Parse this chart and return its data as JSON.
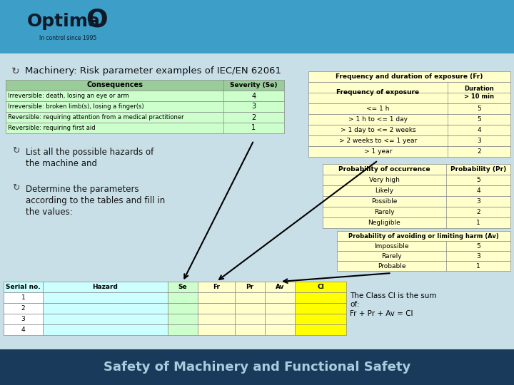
{
  "bg_header_color": "#3d9ec8",
  "bg_body_color": "#c8dfe8",
  "bg_footer_color": "#1a3a5c",
  "title_text": "Optima",
  "title_o": "O",
  "subtitle": "In control since 1995",
  "slide_title": "Machinery: Risk parameter examples of IEC/EN 62061",
  "footer_text": "Safety of Machinery and Functional Safety",
  "consequences_header": [
    "Consequences",
    "Severity (Se)"
  ],
  "consequences_rows": [
    [
      "Irreversible: death, losing an eye or arm",
      "4"
    ],
    [
      "Irreversible: broken limb(s), losing a finger(s)",
      "3"
    ],
    [
      "Reversible: requiring attention from a medical practitioner",
      "2"
    ],
    [
      "Reversible: requiring first aid",
      "1"
    ]
  ],
  "fr_title": "Frequency and duration of exposure (Fr)",
  "fr_header": [
    "Frequency of exposure",
    "Duration\n> 10 min"
  ],
  "fr_rows": [
    [
      "<= 1 h",
      "5"
    ],
    [
      "> 1 h to <= 1 day",
      "5"
    ],
    [
      "> 1 day to <= 2 weeks",
      "4"
    ],
    [
      "> 2 weeks to <= 1 year",
      "3"
    ],
    [
      "> 1 year",
      "2"
    ]
  ],
  "pr_header": [
    "Probability of occurrence",
    "Probability (Pr)"
  ],
  "pr_rows": [
    [
      "Very high",
      "5"
    ],
    [
      "Likely",
      "4"
    ],
    [
      "Possible",
      "3"
    ],
    [
      "Rarely",
      "2"
    ],
    [
      "Negligible",
      "1"
    ]
  ],
  "av_title": "Probability of avoiding or limiting harm (Av)",
  "av_rows": [
    [
      "Impossible",
      "5"
    ],
    [
      "Rarely",
      "3"
    ],
    [
      "Probable",
      "1"
    ]
  ],
  "bottom_header": [
    "Serial no.",
    "Hazard",
    "Se",
    "Fr",
    "Pr",
    "Av",
    "Cl"
  ],
  "bottom_rows": [
    [
      "1",
      "",
      "",
      "",
      "",
      "",
      ""
    ],
    [
      "2",
      "",
      "",
      "",
      "",
      "",
      ""
    ],
    [
      "3",
      "",
      "",
      "",
      "",
      "",
      ""
    ],
    [
      "4",
      "",
      "",
      "",
      "",
      "",
      ""
    ]
  ],
  "bullet1": "List all the possible hazards of\nthe machine and",
  "bullet2": "Determine the parameters\naccording to the tables and fill in\nthe values:",
  "ci_note": "The Class CI is the sum\nof:\nFr + Pr + Av = CI",
  "table_yellow": "#ffffcc",
  "table_green_light": "#ccffcc",
  "table_green_header": "#99cc99",
  "table_cyan_light": "#ccffff",
  "table_yellow_bright": "#ffff00"
}
